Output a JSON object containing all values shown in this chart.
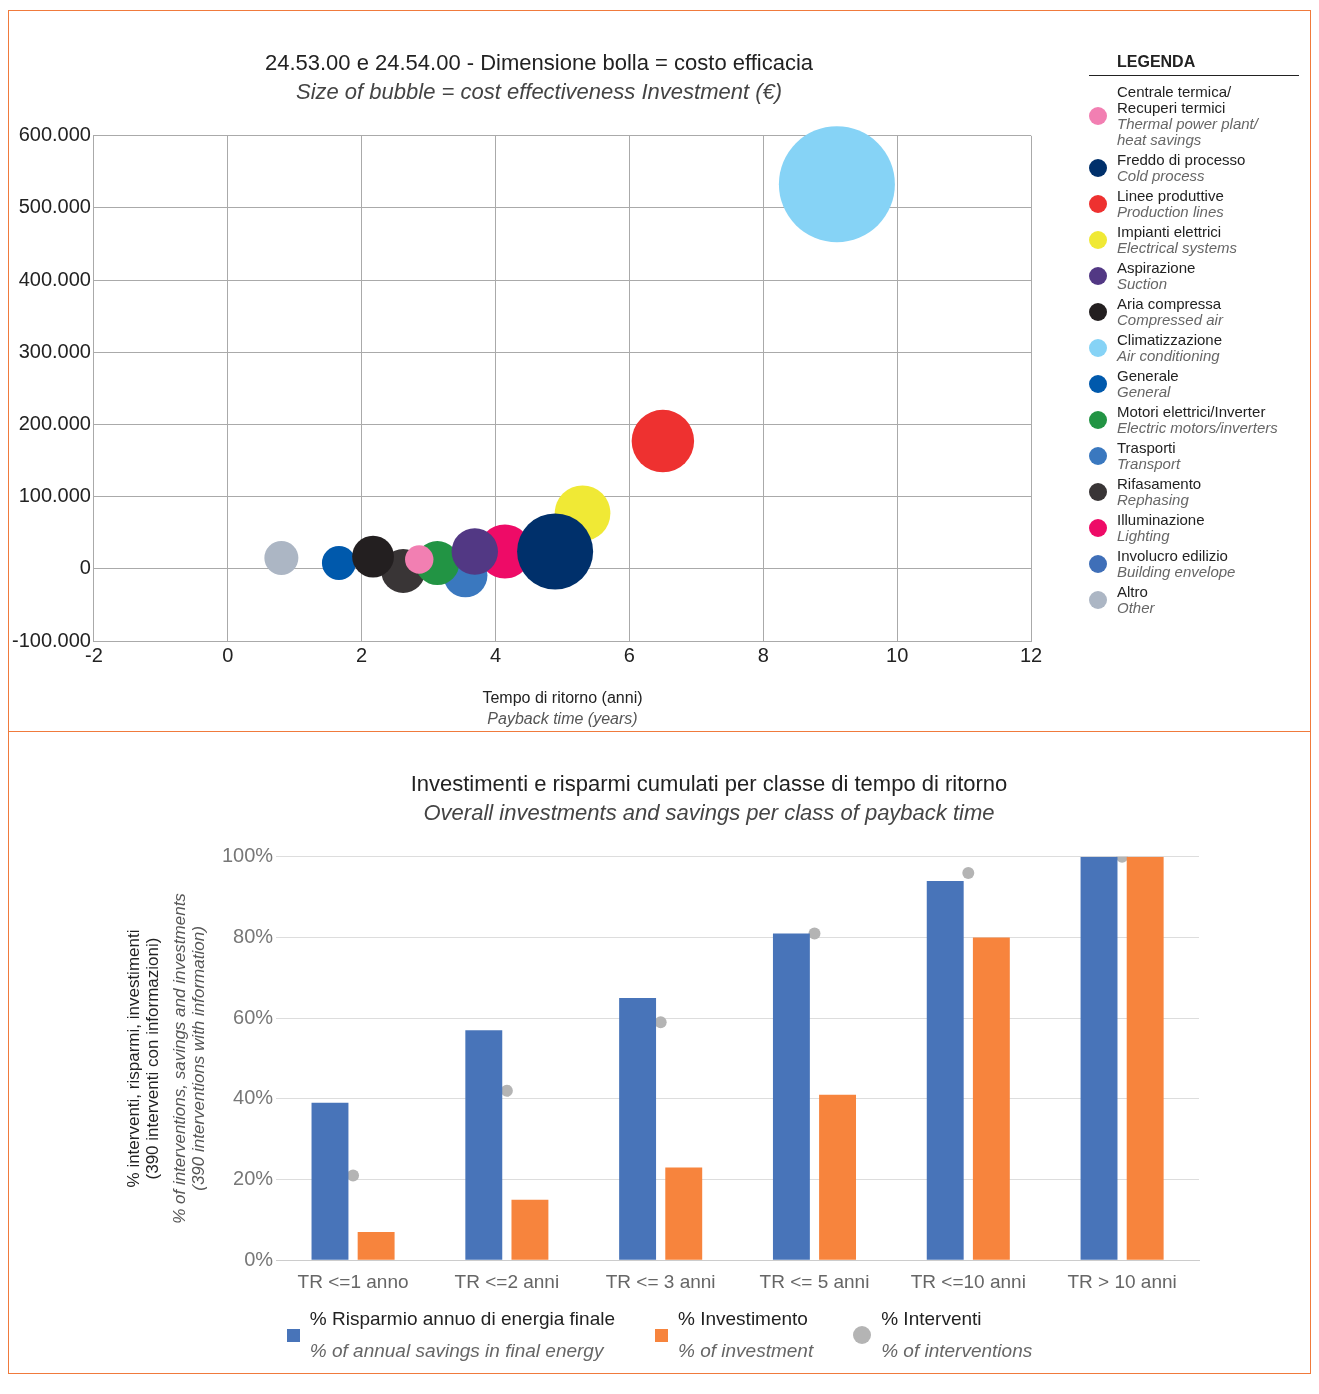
{
  "chart_data": [
    {
      "type": "bubble",
      "title": "24.53.00 e 24.54.00 - Dimensione bolla = costo efficacia",
      "subtitle": "Size of bubble = cost effectiveness Investment (€)",
      "xlabel": "Tempo di ritorno (anni)\nPayback time (years)",
      "legend_title": "LEGENDA",
      "legend": "right",
      "grid": true,
      "xlim": [
        -2,
        12
      ],
      "xticks": [
        -2,
        0,
        2,
        4,
        6,
        8,
        10,
        12
      ],
      "ylim": [
        -100000,
        600000
      ],
      "yticks": [
        {
          "value": -100000,
          "label": "-100.000"
        },
        {
          "value": 0,
          "label": "0"
        },
        {
          "value": 100000,
          "label": "100.000"
        },
        {
          "value": 200000,
          "label": "200.000"
        },
        {
          "value": 300000,
          "label": "300.000"
        },
        {
          "value": 400000,
          "label": "400.000"
        },
        {
          "value": 500000,
          "label": "500.000"
        },
        {
          "value": 600000,
          "label": "600.000"
        }
      ],
      "series": [
        {
          "name": "Centrale termica/\nRecuperi termici\nThermal power plant/\nheat savings",
          "color": "#f27fb2",
          "x": [
            2.86
          ],
          "values": [
            13000
          ],
          "sizes": [
            0.06
          ]
        },
        {
          "name": "Freddo di processo\nCold process",
          "color": "#00306b",
          "x": [
            4.89
          ],
          "values": [
            24000
          ],
          "sizes": [
            0.43
          ]
        },
        {
          "name": "Linee produttive\nProduction lines",
          "color": "#ee3130",
          "x": [
            6.5
          ],
          "values": [
            177000
          ],
          "sizes": [
            0.29
          ]
        },
        {
          "name": "Impianti elettrici\nElectrical systems",
          "color": "#f0e935",
          "x": [
            5.3
          ],
          "values": [
            77000
          ],
          "sizes": [
            0.23
          ]
        },
        {
          "name": "Aspirazione\nSuction",
          "color": "#523884",
          "x": [
            3.69
          ],
          "values": [
            24000
          ],
          "sizes": [
            0.16
          ]
        },
        {
          "name": "Aria compressa\nCompressed air",
          "color": "#231f20",
          "x": [
            2.17
          ],
          "values": [
            17000
          ],
          "sizes": [
            0.13
          ]
        },
        {
          "name": "Climatizzazione\nAir conditioning",
          "color": "#86d3f6",
          "x": [
            9.1
          ],
          "values": [
            533000
          ],
          "sizes": [
            1
          ]
        },
        {
          "name": "Generale\nGeneral",
          "color": "#0059ac",
          "x": [
            1.66
          ],
          "values": [
            8000
          ],
          "sizes": [
            0.086
          ]
        },
        {
          "name": "Motori elettrici/Inverter\nElectric motors/inverters",
          "color": "#229444",
          "x": [
            3.13
          ],
          "values": [
            8000
          ],
          "sizes": [
            0.144
          ]
        },
        {
          "name": "Trasporti\nTransport",
          "color": "#3a78bf",
          "x": [
            3.55
          ],
          "values": [
            -9000
          ],
          "sizes": [
            0.144
          ]
        },
        {
          "name": "Rifasamento\nRephasing",
          "color": "#393536",
          "x": [
            2.62
          ],
          "values": [
            -3000
          ],
          "sizes": [
            0.144
          ]
        },
        {
          "name": "Illuminazione\nLighting",
          "color": "#ee0b67",
          "x": [
            4.14
          ],
          "values": [
            24000
          ],
          "sizes": [
            0.217
          ]
        },
        {
          "name": "Involucro edilizio\nBuilding envelope",
          "color": "#3f6fb8"
        },
        {
          "name": "Altro\nOther",
          "color": "#acb6c4",
          "x": [
            0.8
          ],
          "values": [
            15000
          ],
          "sizes": [
            0.086
          ]
        }
      ]
    },
    {
      "type": "bar",
      "title": "Investimenti e risparmi cumulati per classe di tempo di ritorno",
      "subtitle": "Overall investments and savings per class of payback time",
      "ylabel": "% interventi, risparmi, investimenti\n(390 interventi con informazioni)\n% of interventions, savings and investments\n(390 interventions with information)",
      "legend": "bottom",
      "grid": "y",
      "marker": "circle",
      "categories": [
        "TR <=1 anno",
        "TR <=2 anni",
        "TR <= 3 anni",
        "TR <= 5 anni",
        "TR <=10 anni",
        "TR > 10 anni"
      ],
      "ylim": [
        0,
        100
      ],
      "yticks": [
        {
          "value": 0,
          "label": "0%"
        },
        {
          "value": 20,
          "label": "20%"
        },
        {
          "value": 40,
          "label": "40%"
        },
        {
          "value": 60,
          "label": "60%"
        },
        {
          "value": 80,
          "label": "80%"
        },
        {
          "value": 100,
          "label": "100%"
        }
      ],
      "series": [
        {
          "name": "% Risparmio annuo di energia finale\n% of annual savings in final energy",
          "color": "#4874b9",
          "values": [
            39,
            57,
            65,
            81,
            94,
            100
          ]
        },
        {
          "name": "% Investimento\n% of investment",
          "color": "#f7843d",
          "values": [
            7,
            15,
            23,
            41,
            80,
            100
          ]
        },
        {
          "name": "% Interventi\n% of interventions",
          "color": "#b4b4b4",
          "type": "scatter",
          "x": [
            "TR <=1 anno",
            "TR <=2 anni",
            "TR <= 3 anni",
            "TR <= 5 anni",
            "TR <=10 anni",
            "TR > 10 anni"
          ],
          "values": [
            21,
            42,
            59,
            81,
            96,
            100
          ]
        }
      ]
    }
  ]
}
